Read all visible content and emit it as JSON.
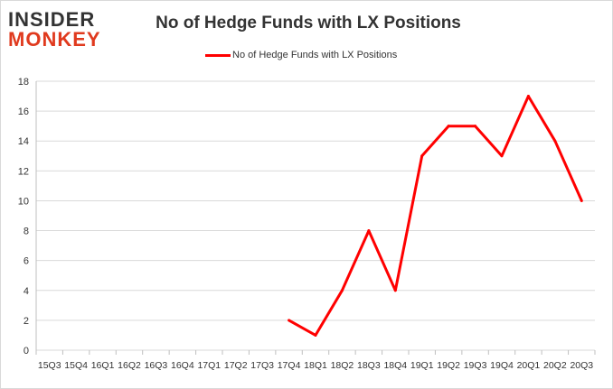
{
  "logo": {
    "line1": "INSIDER",
    "line2": "MONKEY"
  },
  "chart_data": {
    "type": "line",
    "title": "No of Hedge Funds with LX Positions",
    "legend_position": "top",
    "grid": true,
    "ylim": [
      0,
      18
    ],
    "yticks": [
      0,
      2,
      4,
      6,
      8,
      10,
      12,
      14,
      16,
      18
    ],
    "categories": [
      "15Q3",
      "15Q4",
      "16Q1",
      "16Q2",
      "16Q3",
      "16Q4",
      "17Q1",
      "17Q2",
      "17Q3",
      "17Q4",
      "18Q1",
      "18Q2",
      "18Q3",
      "18Q4",
      "19Q1",
      "19Q2",
      "19Q3",
      "19Q4",
      "20Q1",
      "20Q2",
      "20Q3"
    ],
    "series": [
      {
        "name": "No of Hedge Funds with LX Positions",
        "color": "#ff0000",
        "values": [
          null,
          null,
          null,
          null,
          null,
          null,
          null,
          null,
          null,
          2,
          1,
          4,
          8,
          4,
          13,
          15,
          15,
          13,
          17,
          14,
          10
        ]
      }
    ]
  }
}
